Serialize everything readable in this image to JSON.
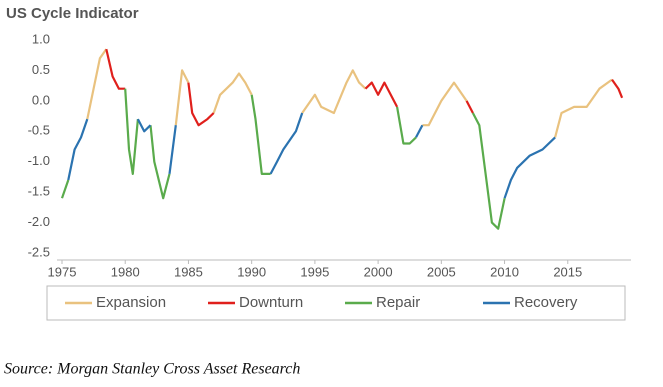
{
  "chart_data": {
    "type": "line",
    "title": "US Cycle Indicator",
    "source": "Source: Morgan Stanley Cross Asset Research",
    "x": [
      1975.0,
      1975.5,
      1976.0,
      1976.5,
      1977.0,
      1977.5,
      1978.0,
      1978.5,
      1979.0,
      1979.5,
      1980.0,
      1980.3,
      1980.6,
      1981.0,
      1981.5,
      1982.0,
      1982.3,
      1983.0,
      1983.5,
      1984.0,
      1984.5,
      1985.0,
      1985.3,
      1985.8,
      1986.5,
      1987.0,
      1987.5,
      1988.5,
      1989.0,
      1989.5,
      1990.0,
      1990.3,
      1990.8,
      1991.5,
      1992.0,
      1992.5,
      1993.5,
      1994.0,
      1995.0,
      1995.5,
      1996.5,
      1997.5,
      1998.0,
      1998.5,
      1999.0,
      1999.5,
      2000.0,
      2000.5,
      2001.5,
      2002.0,
      2002.5,
      2003.0,
      2003.5,
      2004.0,
      2005.0,
      2006.0,
      2007.0,
      2007.5,
      2008.0,
      2008.5,
      2009.0,
      2009.5,
      2010.0,
      2010.5,
      2011.0,
      2012.0,
      2013.0,
      2014.0,
      2014.5,
      2015.5,
      2016.5,
      2017.5,
      2018.5,
      2019.0,
      2019.3
    ],
    "series": [
      {
        "name": "Expansion",
        "color": "#e9c27f",
        "values": [
          null,
          null,
          null,
          null,
          -0.3,
          0.2,
          0.7,
          0.85,
          null,
          null,
          null,
          null,
          null,
          null,
          null,
          null,
          null,
          null,
          null,
          -0.4,
          0.5,
          0.3,
          null,
          null,
          null,
          -0.2,
          0.1,
          0.3,
          0.45,
          0.3,
          0.1,
          null,
          null,
          null,
          null,
          null,
          null,
          -0.2,
          0.1,
          -0.1,
          -0.2,
          0.3,
          0.5,
          0.3,
          0.2,
          null,
          null,
          null,
          null,
          null,
          null,
          null,
          -0.4,
          -0.4,
          0.0,
          0.3,
          0.0,
          null,
          null,
          null,
          null,
          null,
          null,
          null,
          null,
          null,
          null,
          -0.6,
          -0.2,
          -0.1,
          -0.1,
          0.2,
          0.35,
          null,
          null
        ]
      },
      {
        "name": "Downturn",
        "color": "#e0201c",
        "values": [
          null,
          null,
          null,
          null,
          null,
          null,
          null,
          0.85,
          0.4,
          0.2,
          0.2,
          null,
          null,
          null,
          null,
          null,
          null,
          null,
          null,
          null,
          null,
          0.3,
          -0.2,
          -0.4,
          -0.3,
          -0.2,
          null,
          null,
          null,
          null,
          null,
          null,
          null,
          null,
          null,
          null,
          null,
          null,
          null,
          null,
          null,
          null,
          null,
          null,
          0.2,
          0.3,
          0.1,
          0.3,
          -0.1,
          null,
          null,
          null,
          null,
          null,
          null,
          null,
          0.0,
          -0.2,
          null,
          null,
          null,
          null,
          null,
          null,
          null,
          null,
          null,
          null,
          null,
          null,
          null,
          null,
          0.35,
          0.2,
          0.05
        ]
      },
      {
        "name": "Repair",
        "color": "#5aab4c",
        "values": [
          -1.6,
          -1.3,
          null,
          null,
          null,
          null,
          null,
          null,
          null,
          null,
          0.2,
          -0.8,
          -1.2,
          -0.3,
          null,
          -0.4,
          -1.0,
          -1.6,
          -1.2,
          null,
          null,
          null,
          null,
          null,
          null,
          null,
          null,
          null,
          null,
          null,
          0.1,
          -0.3,
          -1.2,
          -1.2,
          null,
          null,
          null,
          null,
          null,
          null,
          null,
          null,
          null,
          null,
          null,
          null,
          null,
          null,
          -0.1,
          -0.7,
          -0.7,
          -0.6,
          null,
          null,
          null,
          null,
          null,
          -0.2,
          -0.4,
          -1.2,
          -2.0,
          -2.1,
          -1.6,
          null,
          null,
          null,
          null,
          null,
          null,
          null,
          null,
          null,
          null,
          null,
          null
        ]
      },
      {
        "name": "Recovery",
        "color": "#2b73b0",
        "values": [
          null,
          -1.3,
          -0.8,
          -0.6,
          -0.3,
          null,
          null,
          null,
          null,
          null,
          null,
          null,
          null,
          -0.3,
          -0.5,
          -0.4,
          null,
          null,
          -1.2,
          -0.4,
          null,
          null,
          null,
          null,
          null,
          null,
          null,
          null,
          null,
          null,
          null,
          null,
          null,
          -1.2,
          -1.0,
          -0.8,
          -0.5,
          -0.2,
          null,
          null,
          null,
          null,
          null,
          null,
          null,
          null,
          null,
          null,
          null,
          null,
          null,
          -0.6,
          -0.4,
          null,
          null,
          null,
          null,
          null,
          null,
          null,
          null,
          null,
          -1.6,
          -1.3,
          -1.1,
          -0.9,
          -0.8,
          -0.6,
          null,
          null,
          null,
          null,
          null,
          null,
          null
        ]
      }
    ],
    "xlim": [
      1975,
      2020
    ],
    "xticks": [
      1975,
      1980,
      1985,
      1990,
      1995,
      2000,
      2005,
      2010,
      2015
    ],
    "ylim": [
      -2.5,
      1.0
    ],
    "yticks": [
      {
        "value": 1.0,
        "label": "1.0"
      },
      0.5,
      {
        "value": 0,
        "label": "0.0"
      },
      -0.5,
      {
        "value": -1.0,
        "label": "-1.0"
      },
      -1.5,
      {
        "value": -2.0,
        "label": "-2.0"
      },
      -2.5
    ],
    "grid": false,
    "legend": "bottom"
  }
}
